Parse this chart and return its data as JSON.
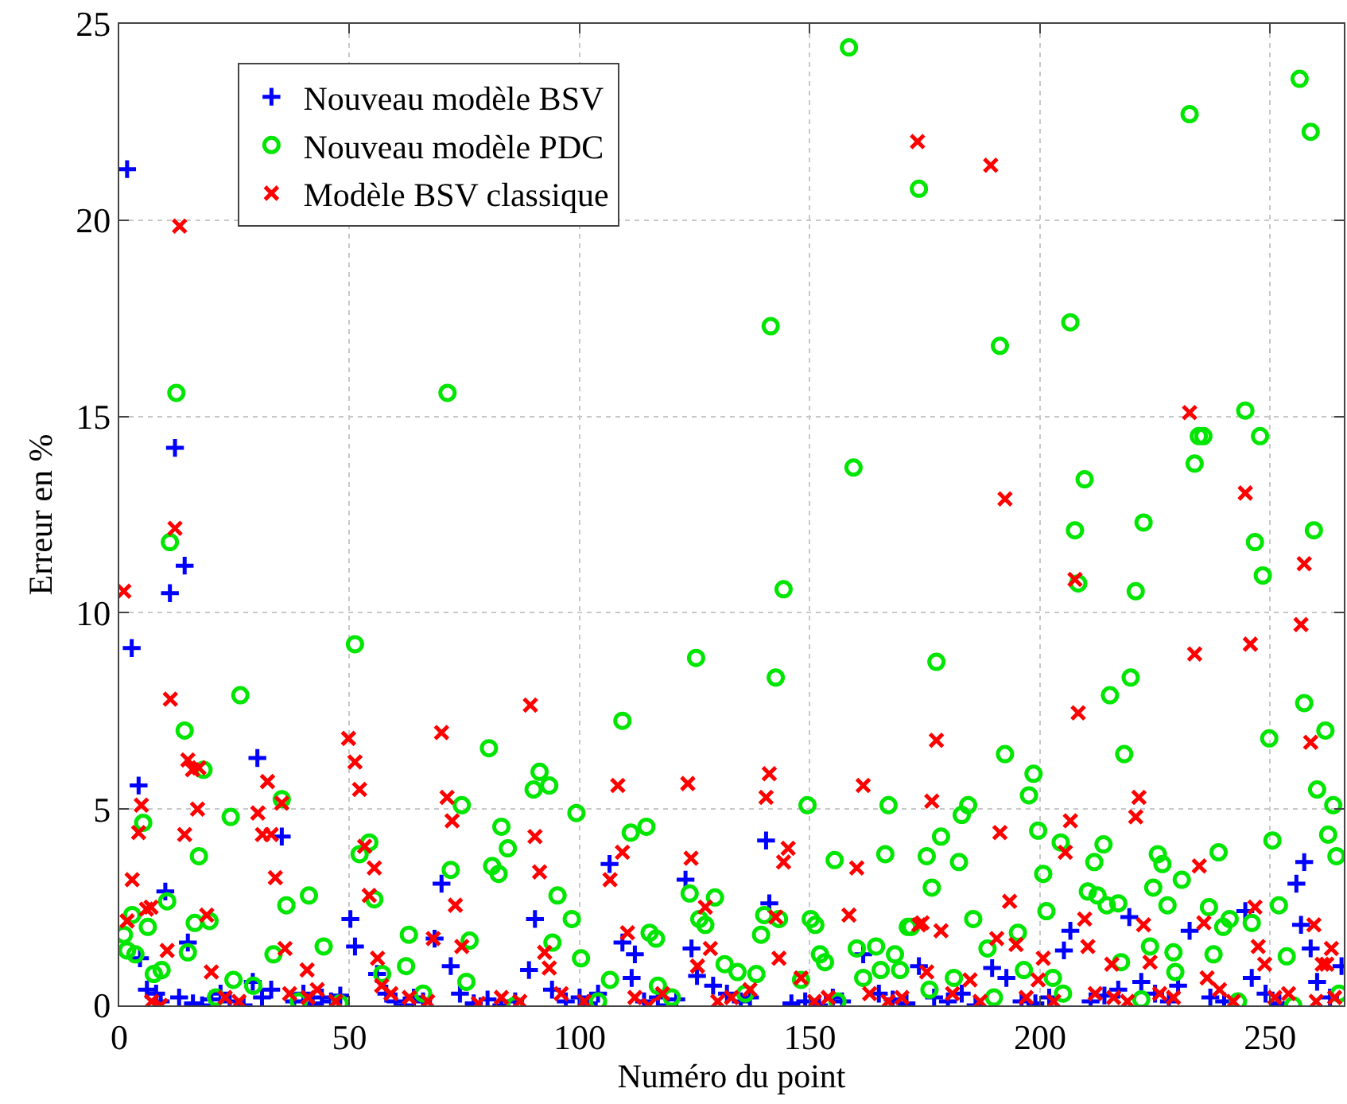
{
  "chart_data": {
    "type": "scatter",
    "xlabel": "Numéro du point",
    "ylabel": "Erreur en %",
    "xlim": [
      0,
      266
    ],
    "xticks": [
      0,
      50,
      100,
      150,
      200,
      250
    ],
    "ylim": [
      0,
      25
    ],
    "yticks": [
      0,
      5,
      10,
      15,
      20,
      25
    ],
    "grid": true,
    "legend": "top left",
    "series": [
      {
        "name": "Nouveau modèle BSV",
        "color": "#0000ff",
        "marker": "cross",
        "x": [
          1.7,
          2.7,
          4.2,
          11,
          12.1,
          14.2,
          10,
          4.5,
          14.9,
          30,
          35.3,
          50.2,
          51.2,
          70,
          68.5,
          72,
          90.3,
          89,
          106.5,
          109.3,
          112,
          111.3,
          123,
          124.3,
          125.5,
          140.5,
          141.2,
          161.6,
          173.7,
          189.6,
          192.7,
          206.6,
          205.2,
          219.4,
          232.5,
          244.6,
          257.4,
          255.7,
          256.7,
          258.8,
          260.2,
          265.5,
          246,
          6,
          8,
          9,
          13,
          16,
          18,
          20,
          22,
          24,
          27,
          29,
          31,
          33,
          38,
          40,
          42,
          44,
          46,
          48,
          56,
          58,
          60,
          62,
          64,
          66,
          74,
          77,
          80,
          83,
          86,
          94,
          97,
          100,
          102,
          104,
          114,
          117,
          119,
          121,
          129,
          132,
          135,
          137,
          146,
          149,
          152,
          155,
          157,
          165,
          168,
          171,
          177,
          180,
          183,
          186,
          196,
          199,
          202,
          211,
          214,
          217,
          222,
          225,
          228,
          230,
          237,
          240,
          249,
          252,
          263
        ],
        "values": [
          21.3,
          9.1,
          5.6,
          10.5,
          14.2,
          11.2,
          2.9,
          1.2,
          1.6,
          6.3,
          4.3,
          2.2,
          1.5,
          3.1,
          1.7,
          1.0,
          2.2,
          0.9,
          3.6,
          1.6,
          1.3,
          0.7,
          3.2,
          1.45,
          0.75,
          4.2,
          2.6,
          1.3,
          1.0,
          0.95,
          0.7,
          1.9,
          1.4,
          2.25,
          1.9,
          2.4,
          3.65,
          3.1,
          2.05,
          1.45,
          0.6,
          1.0,
          0.7,
          0.4,
          0.3,
          0.1,
          0.2,
          0.05,
          0.0,
          0.15,
          0.3,
          0.1,
          0.0,
          0.6,
          0.2,
          0.4,
          0.1,
          0.3,
          0.05,
          0.2,
          0.1,
          0.25,
          0.8,
          0.3,
          0.1,
          0.0,
          0.2,
          0.1,
          0.3,
          0.05,
          0.15,
          0.0,
          0.1,
          0.4,
          0.1,
          0.2,
          0.05,
          0.3,
          0.1,
          0.2,
          0.0,
          0.15,
          0.5,
          0.3,
          0.1,
          0.2,
          0.05,
          0.1,
          0.0,
          0.2,
          0.1,
          0.3,
          0.15,
          0.05,
          0.2,
          0.1,
          0.3,
          0.0,
          0.1,
          0.05,
          0.2,
          0.1,
          0.25,
          0.4,
          0.6,
          0.3,
          0.1,
          0.5,
          0.2,
          0.1,
          0.3,
          0.05,
          0.2
        ]
      },
      {
        "name": "Nouveau modèle PDC",
        "color": "#00e600",
        "marker": "circle",
        "x": [
          12.4,
          11,
          71.3,
          158.5,
          141.5,
          159.5,
          173.7,
          256.4,
          232.5,
          258.8,
          191.3,
          206.6,
          244.6,
          234.5,
          235.5,
          247.8,
          233.6,
          209.7,
          207.6,
          222.5,
          246.7,
          259.5,
          248.4,
          208.3,
          220.8,
          177.5,
          219.7,
          215.2,
          257.4,
          262,
          249.8,
          192.4,
          218.3,
          198.6,
          197.6,
          260.2,
          263.7,
          184.4,
          183,
          178.5,
          175.4,
          176.5,
          182.4,
          199.6,
          204.5,
          213.8,
          211.8,
          200.7,
          225.6,
          226.6,
          230.8,
          224.6,
          227.7,
          238.8,
          250.5,
          262.6,
          264.4,
          210.4,
          212.5,
          214.5,
          217,
          201.4,
          236.7,
          239.8,
          241.2,
          246,
          251.9,
          185.5,
          195.2,
          188.6,
          172,
          223.9,
          229,
          237.7,
          253.6,
          217.6,
          196.5,
          202.8,
          181.3,
          229.4,
          144.3,
          125.3,
          142.6,
          109.3,
          80.3,
          91.3,
          90,
          93.4,
          74.4,
          99.3,
          149.5,
          167.1,
          111.1,
          114.5,
          83,
          84.4,
          166.4,
          81,
          82.4,
          155.4,
          95.2,
          123.9,
          129.4,
          98.3,
          126,
          127.3,
          140.1,
          143.3,
          150.2,
          151.2,
          139.4,
          171.3,
          76.1,
          94.1,
          115.2,
          116.6,
          152.2,
          153.3,
          164.4,
          168.5,
          169.6,
          165.4,
          160.2,
          100.3,
          131.5,
          134.3,
          138.4,
          75.4,
          106.6,
          117,
          148.1,
          161.6,
          51.2,
          26.3,
          14.2,
          18.3,
          35.3,
          24.2,
          5.2,
          17.3,
          52.2,
          54.3,
          72,
          41.2,
          36.3,
          55.4,
          10.4,
          2.8,
          6.2,
          1.0,
          1.7,
          16.4,
          19.6,
          14.9,
          44.4,
          33.5,
          62.9,
          62.3,
          9.2,
          7.5,
          24.8,
          29.1,
          57.1,
          47.9,
          3.5,
          21,
          39,
          66,
          86,
          104,
          120,
          136,
          156,
          176,
          190,
          205,
          222,
          243,
          255,
          265
        ],
        "values": [
          15.6,
          11.8,
          15.6,
          24.4,
          17.3,
          13.7,
          20.8,
          23.6,
          22.7,
          22.25,
          16.8,
          17.4,
          15.15,
          14.5,
          14.5,
          14.5,
          13.8,
          13.4,
          12.1,
          12.3,
          11.8,
          12.1,
          10.95,
          10.75,
          10.55,
          8.75,
          8.35,
          7.9,
          7.7,
          7.0,
          6.8,
          6.4,
          6.4,
          5.9,
          5.35,
          5.5,
          5.1,
          5.1,
          4.85,
          4.3,
          3.8,
          3.0,
          3.65,
          4.45,
          4.15,
          4.1,
          3.65,
          3.35,
          3.85,
          3.6,
          3.2,
          3.0,
          2.55,
          3.9,
          4.2,
          4.35,
          3.8,
          2.9,
          2.8,
          2.55,
          2.6,
          2.4,
          2.5,
          2.0,
          2.2,
          2.1,
          2.55,
          2.2,
          1.85,
          1.45,
          2.0,
          1.5,
          1.35,
          1.3,
          1.25,
          1.1,
          0.9,
          0.7,
          0.7,
          0.85,
          10.6,
          8.85,
          8.35,
          7.25,
          6.55,
          5.95,
          5.5,
          5.6,
          5.1,
          4.9,
          5.1,
          5.1,
          4.4,
          4.55,
          4.55,
          4.0,
          3.85,
          3.55,
          3.35,
          3.7,
          2.8,
          2.85,
          2.75,
          2.2,
          2.2,
          2.05,
          2.3,
          2.2,
          2.2,
          2.05,
          1.8,
          2.0,
          1.65,
          1.6,
          1.85,
          1.7,
          1.3,
          1.1,
          1.5,
          1.3,
          0.9,
          0.9,
          1.45,
          1.2,
          1.05,
          0.85,
          0.8,
          0.6,
          0.65,
          0.5,
          0.65,
          0.7,
          9.2,
          7.9,
          7.0,
          6.0,
          5.25,
          4.8,
          4.65,
          3.8,
          3.85,
          4.15,
          3.45,
          2.8,
          2.55,
          2.7,
          2.65,
          2.3,
          2.0,
          1.8,
          1.4,
          2.1,
          2.15,
          1.35,
          1.5,
          1.3,
          1.8,
          1.0,
          0.9,
          0.8,
          0.65,
          0.5,
          0.8,
          0.05,
          1.3,
          0.2,
          0.1,
          0.3,
          0.0,
          0.1,
          0.2,
          0.3,
          0.1,
          0.4,
          0.2,
          0.3,
          0.15,
          0.1,
          0.0,
          0.3
        ]
      },
      {
        "name": "Modèle BSV classique",
        "color": "#ff0000",
        "marker": "x",
        "x": [
          13.1,
          12.1,
          1.0,
          11.1,
          14.9,
          15.9,
          17.3,
          4.8,
          4.2,
          2.8,
          1.7,
          6.9,
          5.9,
          10.4,
          14.2,
          17,
          19,
          20,
          30.1,
          32.2,
          31.1,
          33,
          35.3,
          33.9,
          36,
          40.8,
          49.8,
          51.2,
          52.2,
          53.3,
          55.4,
          54.3,
          56.1,
          70,
          71.2,
          72.3,
          73,
          74.4,
          68.2,
          89.3,
          90.3,
          91.3,
          92.4,
          93.4,
          108.3,
          109.3,
          106.6,
          110.4,
          123.5,
          124.2,
          127.3,
          128.4,
          125.6,
          141.2,
          140.5,
          145.3,
          144.3,
          142.6,
          143.3,
          161.6,
          160.2,
          158.5,
          148.1,
          173.7,
          173.4,
          189.3,
          192.4,
          232.5,
          244.6,
          207.6,
          257.4,
          256.7,
          245.7,
          233.6,
          177.5,
          208.3,
          258.8,
          176.5,
          221.5,
          220.8,
          206.6,
          191.3,
          205.5,
          234.6,
          193.4,
          246.7,
          174.4,
          178.5,
          190.6,
          194.8,
          209.7,
          210.4,
          222.5,
          235.6,
          247.4,
          259.5,
          263.3,
          261.3,
          262.3,
          200.7,
          199.6,
          215.6,
          223.9,
          236.3,
          248.8,
          175.4,
          184.8,
          7,
          9,
          23,
          26,
          37,
          41,
          43,
          47,
          57,
          59,
          63,
          67,
          78,
          83,
          87,
          96,
          101,
          112,
          115,
          118,
          130,
          133,
          137,
          151,
          154,
          163,
          167,
          170,
          181,
          187,
          197,
          203,
          212,
          216,
          219,
          226,
          229,
          239,
          242,
          251,
          254,
          260,
          264
        ],
        "values": [
          19.85,
          12.15,
          10.55,
          7.8,
          6.25,
          6.0,
          6.05,
          5.1,
          4.4,
          3.2,
          2.15,
          2.5,
          2.45,
          1.4,
          4.35,
          5.0,
          2.3,
          0.85,
          4.9,
          5.7,
          4.35,
          4.35,
          5.15,
          3.25,
          1.45,
          0.9,
          6.8,
          6.2,
          5.5,
          4.05,
          3.5,
          2.8,
          1.2,
          6.95,
          5.3,
          4.7,
          2.55,
          1.5,
          1.7,
          7.65,
          4.3,
          3.4,
          1.35,
          0.95,
          5.6,
          3.9,
          3.2,
          1.85,
          5.65,
          3.75,
          2.5,
          1.45,
          1.0,
          5.9,
          5.3,
          4.0,
          3.65,
          2.25,
          1.2,
          5.6,
          3.5,
          2.3,
          0.7,
          2.05,
          22.0,
          21.4,
          12.9,
          15.1,
          13.05,
          10.85,
          11.25,
          9.7,
          9.2,
          8.95,
          6.75,
          7.45,
          6.7,
          5.2,
          5.3,
          4.8,
          4.7,
          4.4,
          3.9,
          3.55,
          2.65,
          2.5,
          2.1,
          1.9,
          1.7,
          1.55,
          2.2,
          1.5,
          2.05,
          2.1,
          1.5,
          2.05,
          1.45,
          1.05,
          1.05,
          1.2,
          0.65,
          1.05,
          1.1,
          0.7,
          1.05,
          0.85,
          0.65,
          0.1,
          0.0,
          0.2,
          0.1,
          0.3,
          0.2,
          0.4,
          0.1,
          0.5,
          0.3,
          0.2,
          0.1,
          0.05,
          0.2,
          0.1,
          0.3,
          0.1,
          0.2,
          0.0,
          0.3,
          0.1,
          0.2,
          0.4,
          0.1,
          0.2,
          0.3,
          0.1,
          0.2,
          0.3,
          0.1,
          0.2,
          0.1,
          0.3,
          0.2,
          0.1,
          0.3,
          0.2,
          0.4,
          0.1,
          0.2,
          0.3,
          0.1,
          0.2
        ]
      }
    ]
  }
}
